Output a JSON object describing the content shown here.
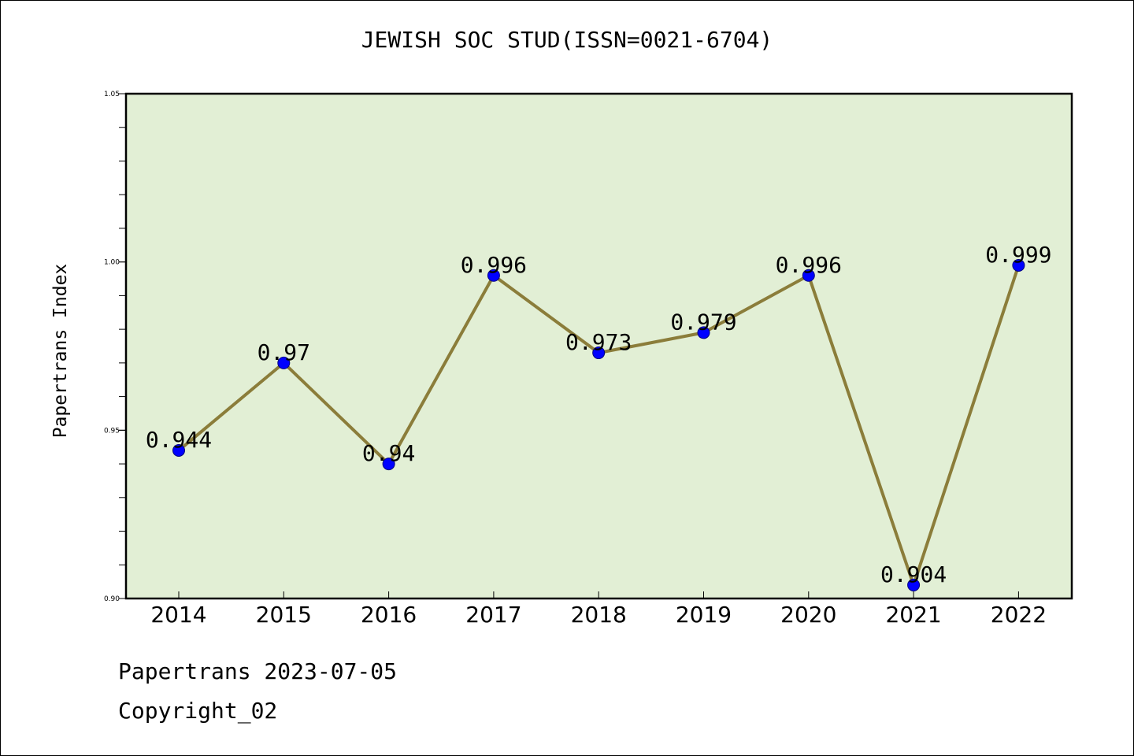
{
  "chart_data": {
    "type": "line",
    "title": "JEWISH SOC STUD(ISSN=0021-6704)",
    "xlabel": "",
    "ylabel": "Papertrans Index",
    "categories": [
      "2014",
      "2015",
      "2016",
      "2017",
      "2018",
      "2019",
      "2020",
      "2021",
      "2022"
    ],
    "values": [
      0.944,
      0.97,
      0.94,
      0.996,
      0.973,
      0.979,
      0.996,
      0.904,
      0.999
    ],
    "data_labels": [
      "0.944",
      "0.97",
      "0.94",
      "0.996",
      "0.973",
      "0.979",
      "0.996",
      "0.904",
      "0.999"
    ],
    "ylim": [
      0.9,
      1.05
    ],
    "y_ticks": [
      {
        "value": 0.9,
        "label": "0.90"
      },
      {
        "value": 0.95,
        "label": "0.95"
      },
      {
        "value": 1.0,
        "label": "1.00"
      },
      {
        "value": 1.05,
        "label": "1.05"
      }
    ],
    "y_minor_step": 0.01,
    "grid": false,
    "legend": "none",
    "colors": {
      "plot_background": "#e2efd5",
      "line": "#8b7d3a",
      "marker": "#0000ff",
      "axis": "#000000"
    }
  },
  "footer": {
    "date_line": "Papertrans 2023-07-05",
    "copyright": "Copyright_02"
  }
}
